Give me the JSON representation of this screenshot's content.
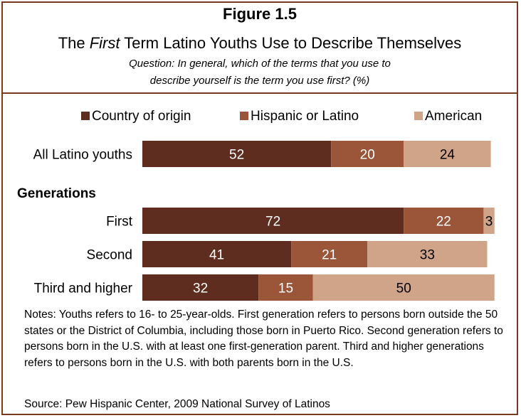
{
  "header": {
    "figure_label": "Figure 1.5",
    "title_pre": "The ",
    "title_em": "First",
    "title_post": " Term Latino Youths Use to Describe Themselves",
    "question_line1": "Question: In general, which of the terms that you use to",
    "question_line2": "describe yourself is the term you use first? (%)"
  },
  "chart_data": {
    "type": "bar",
    "orientation": "horizontal",
    "stacked": true,
    "xlim": [
      0,
      100
    ],
    "legend_position": "top",
    "group_heading": "Generations",
    "categories": [
      "All Latino youths",
      "First",
      "Second",
      "Third and higher"
    ],
    "series": [
      {
        "name": "Country of origin",
        "color": "#5e2d20",
        "values": [
          52,
          72,
          41,
          32
        ]
      },
      {
        "name": "Hispanic or Latino",
        "color": "#9b5538",
        "values": [
          20,
          22,
          21,
          15
        ]
      },
      {
        "name": "American",
        "color": "#cfa489",
        "values": [
          24,
          3,
          33,
          50
        ]
      }
    ]
  },
  "notes": "Notes: Youths refers to 16- to 25-year-olds. First generation refers to persons born outside the 50 states or the District of Columbia, including those born in Puerto Rico. Second generation refers to persons born in the U.S. with at least one first-generation parent. Third and higher generations refers to persons born in the U.S. with both parents born in the U.S.",
  "source": "Source: Pew Hispanic Center, 2009 National Survey of Latinos"
}
